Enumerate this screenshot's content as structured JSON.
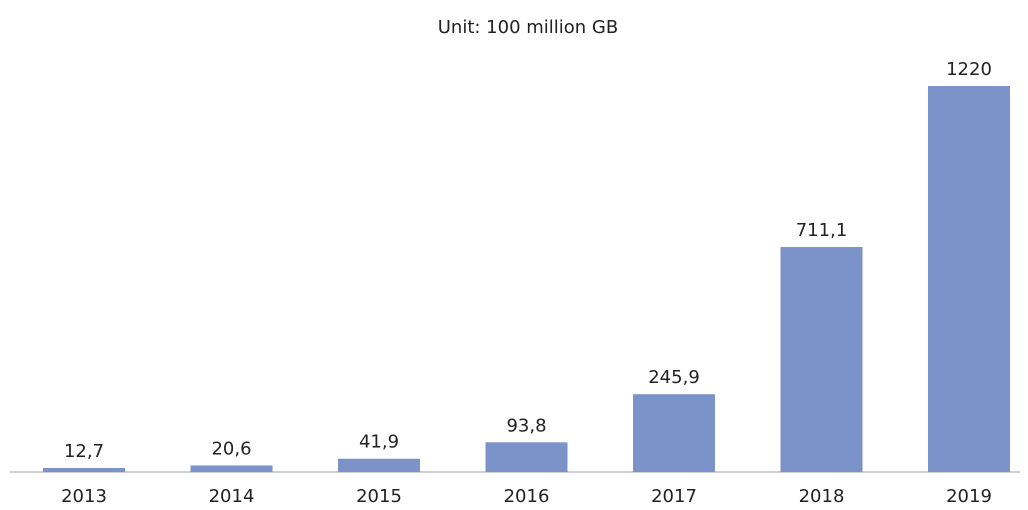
{
  "chart_data": {
    "type": "bar",
    "title": "Unit: 100 million GB",
    "categories": [
      "2013",
      "2014",
      "2015",
      "2016",
      "2017",
      "2018",
      "2019"
    ],
    "values": [
      12.7,
      20.6,
      41.9,
      93.8,
      245.9,
      711.1,
      1220
    ],
    "value_labels": [
      "12,7",
      "20,6",
      "41,9",
      "93,8",
      "245,9",
      "711,1",
      "1220"
    ],
    "color": "#7b93c9",
    "ylim": [
      0,
      1300
    ]
  }
}
